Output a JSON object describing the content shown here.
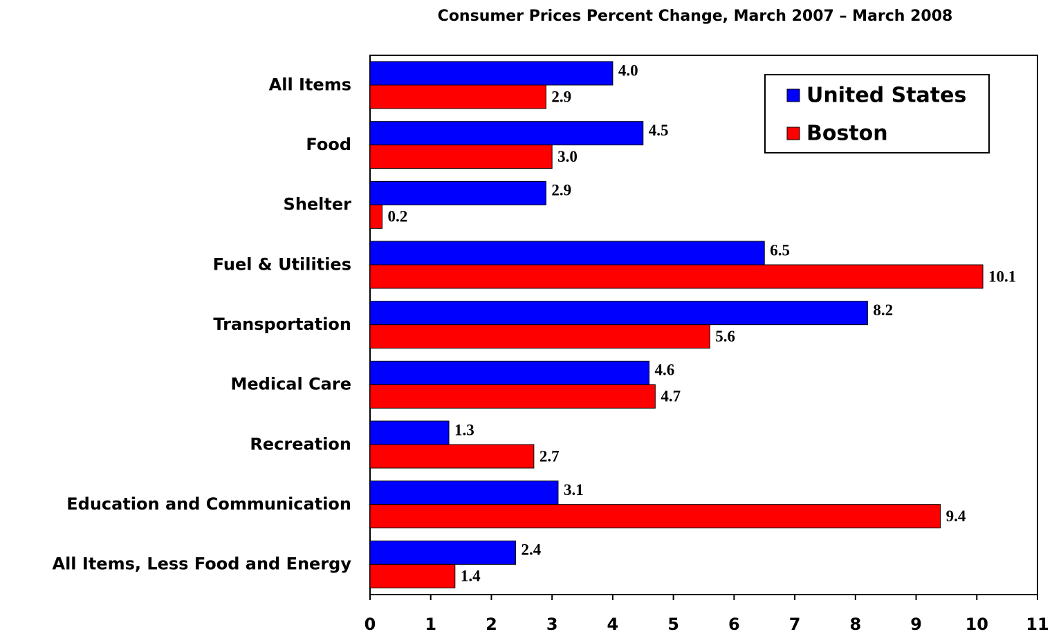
{
  "chart_data": {
    "type": "bar",
    "orientation": "horizontal",
    "title": "Consumer Prices Percent Change, March 2007 – March 2008",
    "categories": [
      "All Items",
      "Food",
      "Shelter",
      "Fuel & Utilities",
      "Transportation",
      "Medical Care",
      "Recreation",
      "Education and Communication",
      "All Items, Less Food and Energy"
    ],
    "series": [
      {
        "name": "United States",
        "color": "#0000ff",
        "values": [
          4.0,
          4.5,
          2.9,
          6.5,
          8.2,
          4.6,
          1.3,
          3.1,
          2.4
        ],
        "value_labels": [
          "4.0",
          "4.5",
          "2.9",
          "6.5",
          "8.2",
          "4.6",
          "1.3",
          "3.1",
          "2.4"
        ]
      },
      {
        "name": "Boston",
        "color": "#ff0000",
        "values": [
          2.9,
          3.0,
          0.2,
          10.1,
          5.6,
          4.7,
          2.7,
          9.4,
          1.4
        ],
        "value_labels": [
          "2.9",
          "3.0",
          "0.2",
          "10.1",
          "5.6",
          "4.7",
          "2.7",
          "9.4",
          "1.4"
        ]
      }
    ],
    "xlim": [
      0,
      11
    ],
    "xticks": [
      0,
      1,
      2,
      3,
      4,
      5,
      6,
      7,
      8,
      9,
      10,
      11
    ],
    "legend": "top-right",
    "grid": false
  }
}
